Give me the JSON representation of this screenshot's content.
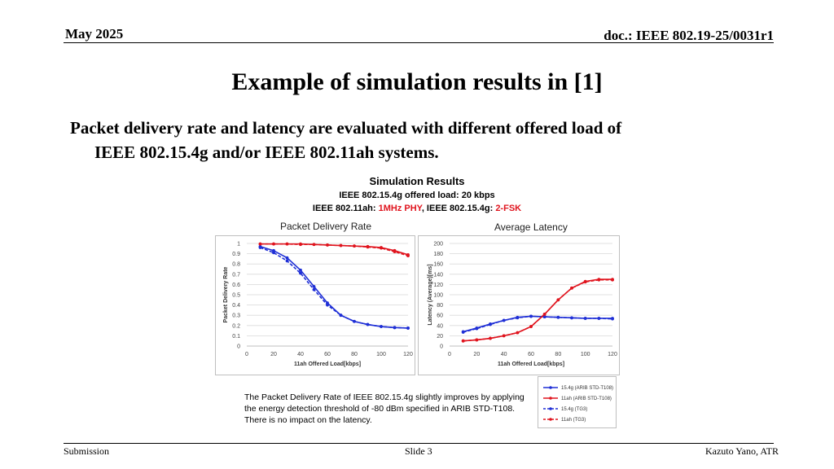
{
  "header": {
    "date": "May 2025",
    "doc": "doc.: IEEE 802.19-25/0031r1"
  },
  "slide_title": "Example of simulation results in [1]",
  "bullet": {
    "line1": "Packet delivery rate and latency are evaluated with different offered load of",
    "line2": "IEEE 802.15.4g and/or IEEE 802.11ah systems."
  },
  "sim": {
    "title": "Simulation Results",
    "line2": "IEEE 802.15.4g offered load: 20 kbps",
    "line3_a": "IEEE 802.11ah: ",
    "line3_b": "1MHz PHY",
    "line3_c": ", IEEE 802.15.4g: ",
    "line3_d": "2-FSK"
  },
  "note": {
    "line1": "The Packet Delivery Rate of IEEE 802.15.4g slightly improves by applying",
    "line2": "the energy detection threshold of -80 dBm specified in ARIB STD-T108.",
    "line3": "There is no impact on the latency."
  },
  "footer": {
    "left": "Submission",
    "center": "Slide 3",
    "right": "Kazuto Yano, ATR"
  },
  "chart_data": [
    {
      "type": "line",
      "title": "Packet Delivery Rate",
      "xlabel": "11ah Offered Load[kbps]",
      "ylabel": "Packet Delivery Rate",
      "xlim": [
        0,
        120
      ],
      "ylim": [
        0,
        1
      ],
      "xticks": [
        0,
        20,
        40,
        60,
        80,
        100,
        120
      ],
      "yticks": [
        0,
        0.1,
        0.2,
        0.3,
        0.4,
        0.5,
        0.6,
        0.7,
        0.8,
        0.9,
        1
      ],
      "grid": true,
      "x": [
        10,
        20,
        30,
        40,
        50,
        60,
        70,
        80,
        90,
        100,
        110,
        120
      ],
      "series": [
        {
          "name": "15.4g (ARIB STD-T108)",
          "color": "#1f2fd6",
          "dash": false,
          "values": [
            0.97,
            0.93,
            0.86,
            0.74,
            0.58,
            0.42,
            0.3,
            0.24,
            0.21,
            0.19,
            0.18,
            0.175
          ]
        },
        {
          "name": "11ah (ARIB STD-T108)",
          "color": "#e0141e",
          "dash": false,
          "values": [
            0.995,
            0.995,
            0.995,
            0.995,
            0.99,
            0.985,
            0.98,
            0.975,
            0.97,
            0.96,
            0.93,
            0.89
          ]
        },
        {
          "name": "15.4g (TG3)",
          "color": "#1f2fd6",
          "dash": true,
          "values": [
            0.96,
            0.91,
            0.83,
            0.71,
            0.55,
            0.4,
            0.3,
            0.24,
            0.21,
            0.19,
            0.18,
            0.175
          ]
        },
        {
          "name": "11ah (TG3)",
          "color": "#e0141e",
          "dash": true,
          "values": [
            0.995,
            0.995,
            0.995,
            0.99,
            0.99,
            0.985,
            0.98,
            0.975,
            0.965,
            0.955,
            0.92,
            0.88
          ]
        }
      ]
    },
    {
      "type": "line",
      "title": "Average Latency",
      "xlabel": "11ah Offered Load[kbps]",
      "ylabel": "Latency (Average)[ms]",
      "xlim": [
        0,
        120
      ],
      "ylim": [
        0,
        200
      ],
      "xticks": [
        0,
        20,
        40,
        60,
        80,
        100,
        120
      ],
      "yticks": [
        0,
        20,
        40,
        60,
        80,
        100,
        120,
        140,
        160,
        180,
        200
      ],
      "grid": true,
      "x": [
        10,
        20,
        30,
        40,
        50,
        60,
        70,
        80,
        90,
        100,
        110,
        120
      ],
      "series": [
        {
          "name": "15.4g (ARIB STD-T108)",
          "color": "#1f2fd6",
          "dash": false,
          "values": [
            28,
            35,
            43,
            50,
            56,
            58,
            57,
            56,
            55,
            54,
            54,
            54
          ]
        },
        {
          "name": "11ah (ARIB STD-T108)",
          "color": "#e0141e",
          "dash": false,
          "values": [
            10,
            12,
            15,
            20,
            26,
            38,
            62,
            90,
            113,
            126,
            130,
            130
          ]
        },
        {
          "name": "15.4g (TG3)",
          "color": "#1f2fd6",
          "dash": true,
          "values": [
            27,
            34,
            42,
            50,
            55,
            58,
            57,
            56,
            55,
            54,
            54,
            53
          ]
        },
        {
          "name": "11ah (TG3)",
          "color": "#e0141e",
          "dash": true,
          "values": [
            10,
            12,
            15,
            20,
            26,
            38,
            62,
            90,
            113,
            125,
            129,
            129
          ]
        }
      ]
    }
  ]
}
